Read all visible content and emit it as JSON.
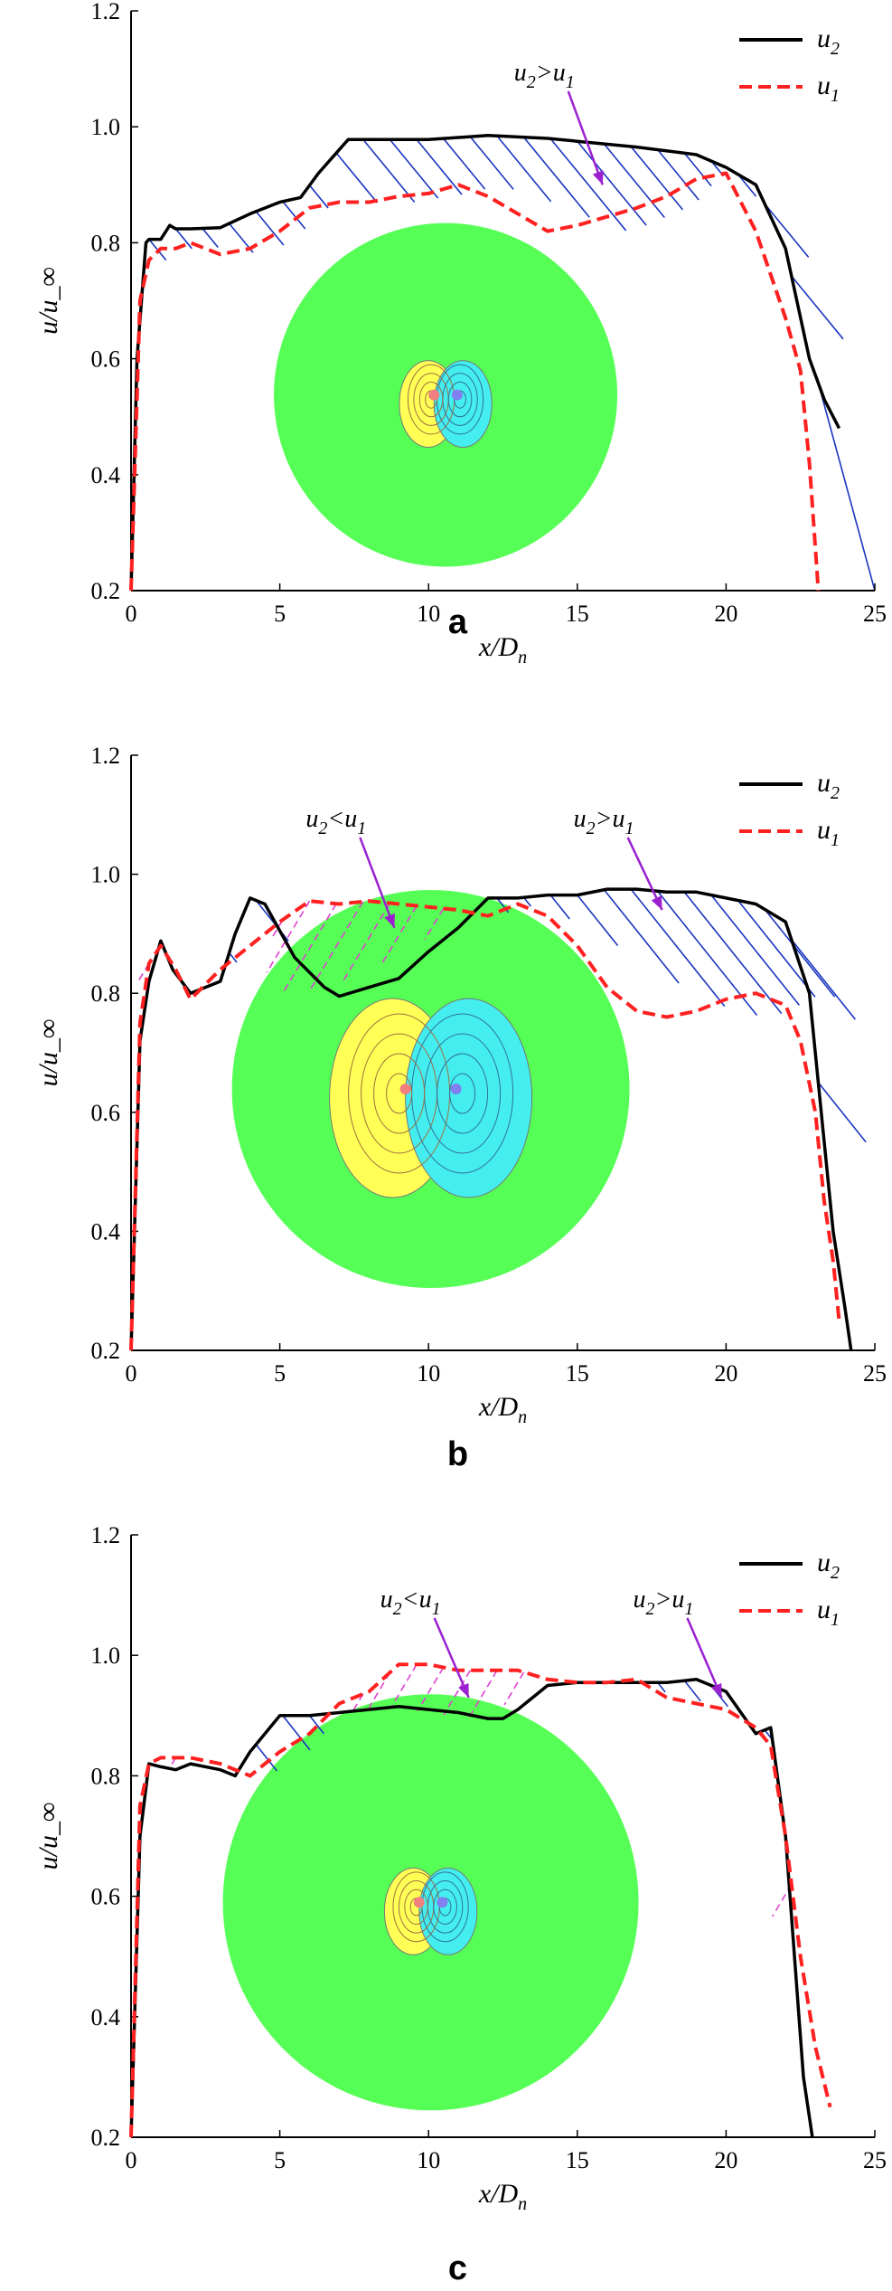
{
  "colors": {
    "u2": "#000000",
    "u1": "#ff2020",
    "hatch_gt": "#1a35c0",
    "hatch_lt": "#e040d0",
    "arrow": "#9a20d0",
    "disk": "#55ff55",
    "yellow": "#ffff55",
    "cyan": "#44eeee"
  },
  "chart_data": [
    {
      "panel": "a",
      "type": "line",
      "xlabel": "x/D_n",
      "ylabel": "u/u_∞",
      "xlim": [
        0,
        25
      ],
      "ylim": [
        0.2,
        1.2
      ],
      "xticks": [
        "0",
        "5",
        "10",
        "15",
        "20",
        "25"
      ],
      "yticks": [
        "0.2",
        "0.4",
        "0.6",
        "0.8",
        "1.0",
        "1.2"
      ],
      "legend": [
        "u2",
        "u1"
      ],
      "annotations": [
        {
          "text": "u2>u1",
          "kind": "gt",
          "x": 15,
          "y": 0.9
        }
      ],
      "series": [
        {
          "name": "u2",
          "x": [
            0,
            0.2,
            0.5,
            0.6,
            1.0,
            1.3,
            1.5,
            2,
            3,
            4,
            5,
            5.7,
            6.3,
            7.3,
            8,
            10,
            12,
            14,
            15,
            17,
            19,
            20,
            21,
            22,
            22.8,
            23.3,
            23.8
          ],
          "y": [
            0.2,
            0.6,
            0.8,
            0.806,
            0.806,
            0.83,
            0.824,
            0.824,
            0.826,
            0.85,
            0.87,
            0.878,
            0.92,
            0.978,
            0.978,
            0.978,
            0.985,
            0.98,
            0.975,
            0.965,
            0.952,
            0.93,
            0.9,
            0.79,
            0.6,
            0.53,
            0.48
          ]
        },
        {
          "name": "u1",
          "x": [
            0,
            0.3,
            0.6,
            1.0,
            1.5,
            2,
            3,
            4,
            5,
            6,
            7,
            8,
            9,
            10,
            11,
            12,
            13,
            14,
            15,
            16,
            17,
            18,
            19,
            20,
            21,
            22,
            22.5,
            22.8,
            23.1
          ],
          "y": [
            0.2,
            0.7,
            0.77,
            0.79,
            0.79,
            0.8,
            0.78,
            0.79,
            0.82,
            0.86,
            0.87,
            0.87,
            0.88,
            0.885,
            0.9,
            0.88,
            0.85,
            0.82,
            0.83,
            0.845,
            0.86,
            0.88,
            0.91,
            0.92,
            0.82,
            0.67,
            0.58,
            0.42,
            0.2
          ]
        }
      ]
    },
    {
      "panel": "b",
      "type": "line",
      "xlabel": "x/D_n",
      "ylabel": "u/u_∞",
      "xlim": [
        0,
        25
      ],
      "ylim": [
        0.2,
        1.2
      ],
      "xticks": [
        "0",
        "5",
        "10",
        "15",
        "20",
        "25"
      ],
      "yticks": [
        "0.2",
        "0.4",
        "0.6",
        "0.8",
        "1.0",
        "1.2"
      ],
      "legend": [
        "u2",
        "u1"
      ],
      "annotations": [
        {
          "text": "u2<u1",
          "kind": "lt",
          "x": 8,
          "y": 0.91
        },
        {
          "text": "u2>u1",
          "kind": "gt",
          "x": 17,
          "y": 0.94
        }
      ],
      "series": [
        {
          "name": "u2",
          "x": [
            0,
            0.3,
            0.6,
            1.0,
            1.4,
            2,
            3,
            3.5,
            4.0,
            4.5,
            5.5,
            6.5,
            7,
            8,
            9,
            10,
            11,
            12,
            13,
            14,
            15,
            16,
            17,
            18,
            19,
            20,
            21,
            22,
            22.8,
            23.2,
            23.6,
            24.0,
            24.2
          ],
          "y": [
            0.2,
            0.72,
            0.82,
            0.888,
            0.84,
            0.8,
            0.82,
            0.9,
            0.96,
            0.95,
            0.86,
            0.81,
            0.795,
            0.81,
            0.825,
            0.87,
            0.91,
            0.96,
            0.96,
            0.965,
            0.965,
            0.975,
            0.975,
            0.97,
            0.97,
            0.96,
            0.95,
            0.92,
            0.8,
            0.6,
            0.4,
            0.27,
            0.2
          ]
        },
        {
          "name": "u1",
          "x": [
            0,
            0.3,
            0.6,
            1.0,
            1.5,
            2,
            3,
            4,
            5,
            6,
            7,
            8,
            9,
            10,
            11,
            12,
            13,
            14,
            15,
            16,
            17,
            18,
            19,
            20,
            21,
            22,
            22.5,
            23,
            23.3,
            23.6,
            23.8
          ],
          "y": [
            0.2,
            0.75,
            0.85,
            0.88,
            0.84,
            0.79,
            0.84,
            0.88,
            0.92,
            0.955,
            0.95,
            0.955,
            0.95,
            0.945,
            0.94,
            0.93,
            0.95,
            0.93,
            0.88,
            0.81,
            0.77,
            0.76,
            0.77,
            0.79,
            0.8,
            0.78,
            0.72,
            0.6,
            0.45,
            0.35,
            0.25
          ]
        }
      ]
    },
    {
      "panel": "c",
      "type": "line",
      "xlabel": "x/D_n",
      "ylabel": "u/u_∞",
      "xlim": [
        0,
        25
      ],
      "ylim": [
        0.2,
        1.2
      ],
      "xticks": [
        "0",
        "5",
        "10",
        "15",
        "20",
        "25"
      ],
      "yticks": [
        "0.2",
        "0.4",
        "0.6",
        "0.8",
        "1.0",
        "1.2"
      ],
      "legend": [
        "u2",
        "u1"
      ],
      "annotations": [
        {
          "text": "u2<u1",
          "kind": "lt",
          "x": 10.5,
          "y": 0.93
        },
        {
          "text": "u2>u1",
          "kind": "gt",
          "x": 19,
          "y": 0.93
        }
      ],
      "series": [
        {
          "name": "u2",
          "x": [
            0,
            0.3,
            0.6,
            1.0,
            1.5,
            2,
            3,
            3.5,
            4,
            5,
            6,
            7,
            8,
            9,
            10,
            11,
            12,
            12.5,
            13,
            14,
            15,
            16,
            17,
            18,
            19,
            20,
            21,
            21.5,
            22,
            22.3,
            22.6,
            22.9
          ],
          "y": [
            0.2,
            0.7,
            0.82,
            0.815,
            0.81,
            0.82,
            0.81,
            0.8,
            0.84,
            0.9,
            0.9,
            0.905,
            0.91,
            0.915,
            0.91,
            0.905,
            0.895,
            0.895,
            0.91,
            0.95,
            0.955,
            0.955,
            0.955,
            0.955,
            0.96,
            0.94,
            0.87,
            0.88,
            0.7,
            0.5,
            0.3,
            0.2
          ]
        },
        {
          "name": "u1",
          "x": [
            0,
            0.3,
            0.6,
            1,
            2,
            3,
            3.5,
            4,
            5,
            6,
            7,
            8,
            9,
            10,
            11,
            12,
            13,
            14,
            15,
            16,
            17,
            18,
            19,
            20,
            21,
            21.5,
            22,
            22.5,
            23,
            23.5
          ],
          "y": [
            0.2,
            0.75,
            0.82,
            0.83,
            0.83,
            0.82,
            0.81,
            0.8,
            0.84,
            0.87,
            0.92,
            0.94,
            0.985,
            0.985,
            0.975,
            0.975,
            0.975,
            0.96,
            0.955,
            0.955,
            0.96,
            0.93,
            0.92,
            0.91,
            0.88,
            0.85,
            0.7,
            0.5,
            0.35,
            0.25
          ]
        }
      ]
    }
  ]
}
